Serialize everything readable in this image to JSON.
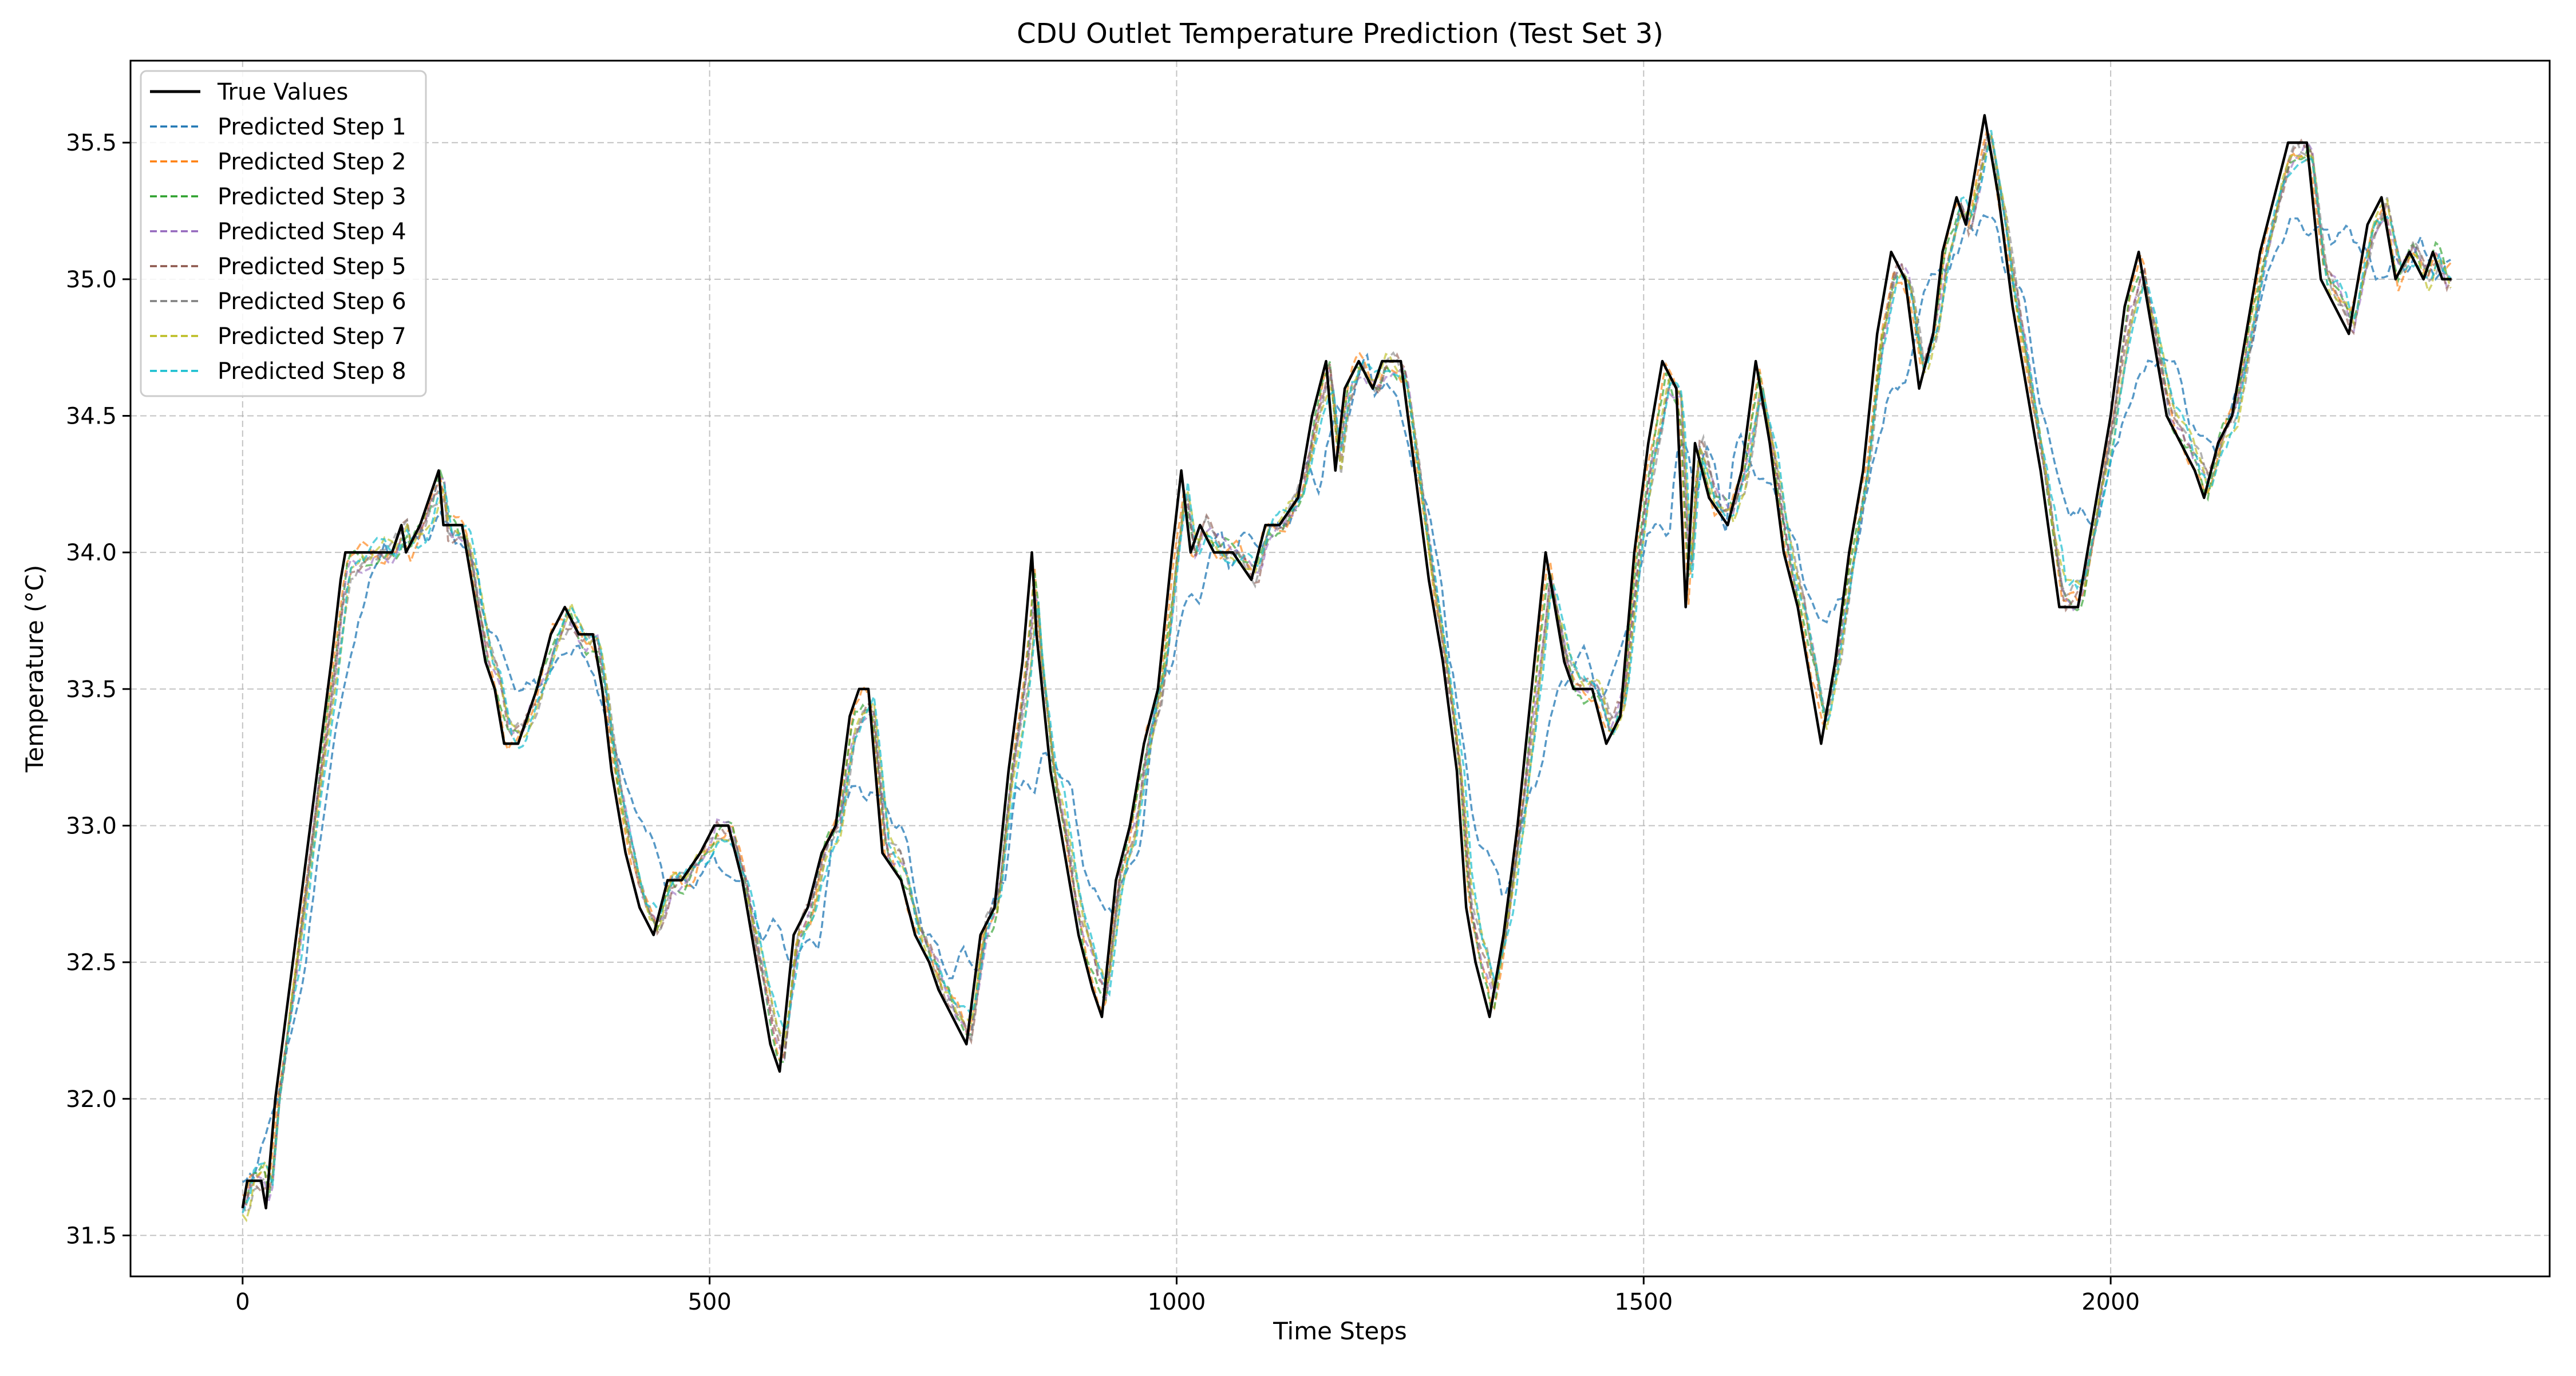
{
  "chart_data": {
    "type": "line",
    "title": "CDU Outlet Temperature Prediction (Test Set 3)",
    "xlabel": "Time Steps",
    "ylabel": "Temperature (°C)",
    "xlim": [
      -120,
      2470
    ],
    "ylim": [
      31.35,
      35.8
    ],
    "xticks": [
      0,
      500,
      1000,
      1500,
      2000
    ],
    "xtick_labels": [
      "0",
      "500",
      "1000",
      "1500",
      "2000"
    ],
    "yticks": [
      31.5,
      32.0,
      32.5,
      33.0,
      33.5,
      34.0,
      34.5,
      35.0,
      35.5
    ],
    "ytick_labels": [
      "31.5",
      "32.0",
      "32.5",
      "33.0",
      "33.5",
      "34.0",
      "34.5",
      "35.0",
      "35.5"
    ],
    "grid": true,
    "legend_position": "top-left",
    "true_series": {
      "name": "True Values",
      "color": "#000000",
      "points": [
        [
          0,
          31.6
        ],
        [
          5,
          31.7
        ],
        [
          20,
          31.7
        ],
        [
          25,
          31.6
        ],
        [
          35,
          32.0
        ],
        [
          50,
          32.4
        ],
        [
          65,
          32.8
        ],
        [
          80,
          33.2
        ],
        [
          95,
          33.6
        ],
        [
          105,
          33.9
        ],
        [
          110,
          34.0
        ],
        [
          150,
          34.0
        ],
        [
          160,
          34.0
        ],
        [
          170,
          34.1
        ],
        [
          175,
          34.0
        ],
        [
          190,
          34.1
        ],
        [
          200,
          34.2
        ],
        [
          210,
          34.3
        ],
        [
          215,
          34.1
        ],
        [
          235,
          34.1
        ],
        [
          240,
          34.0
        ],
        [
          250,
          33.8
        ],
        [
          260,
          33.6
        ],
        [
          270,
          33.5
        ],
        [
          280,
          33.3
        ],
        [
          295,
          33.3
        ],
        [
          305,
          33.4
        ],
        [
          315,
          33.5
        ],
        [
          330,
          33.7
        ],
        [
          345,
          33.8
        ],
        [
          360,
          33.7
        ],
        [
          375,
          33.7
        ],
        [
          385,
          33.5
        ],
        [
          395,
          33.2
        ],
        [
          410,
          32.9
        ],
        [
          425,
          32.7
        ],
        [
          440,
          32.6
        ],
        [
          455,
          32.8
        ],
        [
          470,
          32.8
        ],
        [
          490,
          32.9
        ],
        [
          505,
          33.0
        ],
        [
          520,
          33.0
        ],
        [
          535,
          32.8
        ],
        [
          550,
          32.5
        ],
        [
          565,
          32.2
        ],
        [
          575,
          32.1
        ],
        [
          590,
          32.6
        ],
        [
          605,
          32.7
        ],
        [
          620,
          32.9
        ],
        [
          635,
          33.0
        ],
        [
          650,
          33.4
        ],
        [
          660,
          33.5
        ],
        [
          670,
          33.5
        ],
        [
          685,
          32.9
        ],
        [
          705,
          32.8
        ],
        [
          720,
          32.6
        ],
        [
          735,
          32.5
        ],
        [
          745,
          32.4
        ],
        [
          760,
          32.3
        ],
        [
          775,
          32.2
        ],
        [
          790,
          32.6
        ],
        [
          805,
          32.7
        ],
        [
          820,
          33.2
        ],
        [
          835,
          33.6
        ],
        [
          845,
          34.0
        ],
        [
          850,
          33.7
        ],
        [
          865,
          33.2
        ],
        [
          880,
          32.9
        ],
        [
          895,
          32.6
        ],
        [
          910,
          32.4
        ],
        [
          920,
          32.3
        ],
        [
          935,
          32.8
        ],
        [
          950,
          33.0
        ],
        [
          965,
          33.3
        ],
        [
          980,
          33.5
        ],
        [
          995,
          34.0
        ],
        [
          1005,
          34.3
        ],
        [
          1015,
          34.0
        ],
        [
          1025,
          34.1
        ],
        [
          1040,
          34.0
        ],
        [
          1060,
          34.0
        ],
        [
          1080,
          33.9
        ],
        [
          1095,
          34.1
        ],
        [
          1110,
          34.1
        ],
        [
          1130,
          34.2
        ],
        [
          1145,
          34.5
        ],
        [
          1160,
          34.7
        ],
        [
          1170,
          34.3
        ],
        [
          1180,
          34.6
        ],
        [
          1195,
          34.7
        ],
        [
          1210,
          34.6
        ],
        [
          1220,
          34.7
        ],
        [
          1240,
          34.7
        ],
        [
          1255,
          34.3
        ],
        [
          1270,
          33.9
        ],
        [
          1285,
          33.6
        ],
        [
          1300,
          33.2
        ],
        [
          1310,
          32.7
        ],
        [
          1320,
          32.5
        ],
        [
          1335,
          32.3
        ],
        [
          1350,
          32.6
        ],
        [
          1365,
          33.0
        ],
        [
          1380,
          33.5
        ],
        [
          1395,
          34.0
        ],
        [
          1405,
          33.8
        ],
        [
          1415,
          33.6
        ],
        [
          1425,
          33.5
        ],
        [
          1445,
          33.5
        ],
        [
          1460,
          33.3
        ],
        [
          1475,
          33.4
        ],
        [
          1490,
          34.0
        ],
        [
          1505,
          34.4
        ],
        [
          1520,
          34.7
        ],
        [
          1535,
          34.6
        ],
        [
          1545,
          33.8
        ],
        [
          1555,
          34.4
        ],
        [
          1570,
          34.2
        ],
        [
          1590,
          34.1
        ],
        [
          1605,
          34.3
        ],
        [
          1620,
          34.7
        ],
        [
          1635,
          34.4
        ],
        [
          1650,
          34.0
        ],
        [
          1665,
          33.8
        ],
        [
          1680,
          33.5
        ],
        [
          1690,
          33.3
        ],
        [
          1705,
          33.6
        ],
        [
          1720,
          34.0
        ],
        [
          1735,
          34.3
        ],
        [
          1750,
          34.8
        ],
        [
          1765,
          35.1
        ],
        [
          1780,
          35.0
        ],
        [
          1795,
          34.6
        ],
        [
          1810,
          34.8
        ],
        [
          1820,
          35.1
        ],
        [
          1835,
          35.3
        ],
        [
          1845,
          35.2
        ],
        [
          1855,
          35.4
        ],
        [
          1865,
          35.6
        ],
        [
          1880,
          35.3
        ],
        [
          1895,
          34.9
        ],
        [
          1910,
          34.6
        ],
        [
          1925,
          34.3
        ],
        [
          1945,
          33.8
        ],
        [
          1965,
          33.8
        ],
        [
          1985,
          34.2
        ],
        [
          2000,
          34.5
        ],
        [
          2015,
          34.9
        ],
        [
          2030,
          35.1
        ],
        [
          2045,
          34.8
        ],
        [
          2060,
          34.5
        ],
        [
          2075,
          34.4
        ],
        [
          2090,
          34.3
        ],
        [
          2100,
          34.2
        ],
        [
          2115,
          34.4
        ],
        [
          2130,
          34.5
        ],
        [
          2145,
          34.8
        ],
        [
          2160,
          35.1
        ],
        [
          2175,
          35.3
        ],
        [
          2190,
          35.5
        ],
        [
          2210,
          35.5
        ],
        [
          2225,
          35.0
        ],
        [
          2240,
          34.9
        ],
        [
          2255,
          34.8
        ],
        [
          2275,
          35.2
        ],
        [
          2290,
          35.3
        ],
        [
          2305,
          35.0
        ],
        [
          2320,
          35.1
        ],
        [
          2335,
          35.0
        ],
        [
          2345,
          35.1
        ],
        [
          2355,
          35.0
        ],
        [
          2365,
          35.0
        ]
      ]
    },
    "predicted_series": [
      {
        "name": "Predicted Step 1",
        "color": "#1f77b4",
        "opacity": 0.75,
        "lag": 12,
        "damp": 0.55,
        "phase": 0.3,
        "seed": 1
      },
      {
        "name": "Predicted Step 2",
        "color": "#ff7f0e",
        "opacity": 0.65,
        "lag": 3,
        "damp": 0.05,
        "phase": 1.1,
        "seed": 2
      },
      {
        "name": "Predicted Step 3",
        "color": "#2ca02c",
        "opacity": 0.65,
        "lag": 4,
        "damp": 0.06,
        "phase": 2.0,
        "seed": 3
      },
      {
        "name": "Predicted Step 4",
        "color": "#9467bd",
        "opacity": 0.6,
        "lag": 5,
        "damp": 0.08,
        "phase": 2.7,
        "seed": 4
      },
      {
        "name": "Predicted Step 5",
        "color": "#8c564b",
        "opacity": 0.6,
        "lag": 5,
        "damp": 0.08,
        "phase": 3.5,
        "seed": 5
      },
      {
        "name": "Predicted Step 6",
        "color": "#7f7f7f",
        "opacity": 0.6,
        "lag": 6,
        "damp": 0.1,
        "phase": 4.2,
        "seed": 6
      },
      {
        "name": "Predicted Step 7",
        "color": "#bcbd22",
        "opacity": 0.65,
        "lag": 6,
        "damp": 0.1,
        "phase": 5.0,
        "seed": 7
      },
      {
        "name": "Predicted Step 8",
        "color": "#17becf",
        "opacity": 0.7,
        "lag": 7,
        "damp": 0.12,
        "phase": 5.8,
        "seed": 8
      }
    ]
  }
}
